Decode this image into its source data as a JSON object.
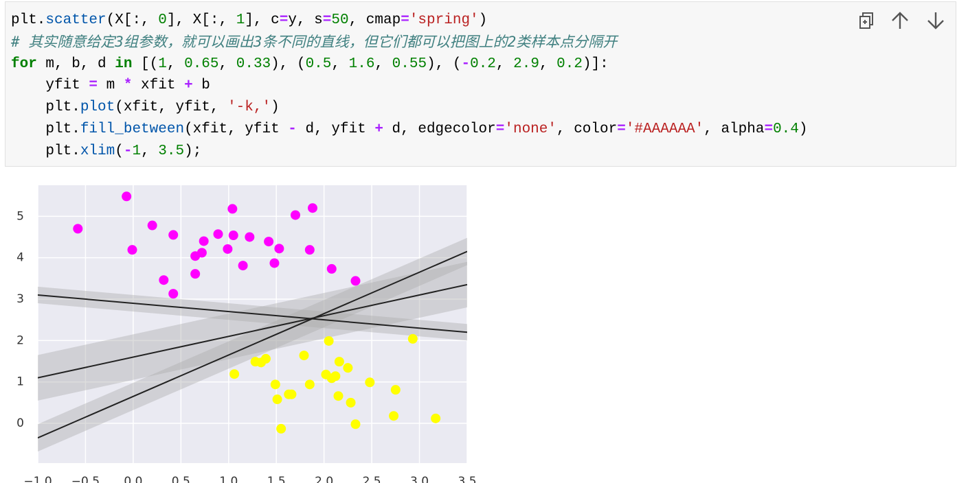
{
  "code": {
    "lines": [
      "plt.scatter(X[:, 0], X[:, 1], c=y, s=50, cmap='spring')",
      "# 其实随意给定3组参数，就可以画出3条不同的直线，但它们都可以把图上的2类样本点分隔开",
      "for m, b, d in [(1, 0.65, 0.33), (0.5, 1.6, 0.55), (-0.2, 2.9, 0.2)]:",
      "    yfit = m * xfit + b",
      "    plt.plot(xfit, yfit, '-k,')",
      "    plt.fill_between(xfit, yfit - d, yfit + d, edgecolor='none', color='#AAAAAA', alpha=0.4)",
      "    plt.xlim(-1, 3.5);"
    ]
  },
  "chart_data": {
    "type": "scatter",
    "xlim": [
      -1,
      3.5
    ],
    "ylim": [
      -0.96,
      5.75
    ],
    "xticks": [
      {
        "value": -1,
        "label": "−1.0"
      },
      {
        "value": -0.5,
        "label": "−0.5"
      },
      {
        "value": 0,
        "label": "0.0"
      },
      {
        "value": 0.5,
        "label": "0.5"
      },
      {
        "value": 1,
        "label": "1.0"
      },
      {
        "value": 1.5,
        "label": "1.5"
      },
      {
        "value": 2,
        "label": "2.0"
      },
      {
        "value": 2.5,
        "label": "2.5"
      },
      {
        "value": 3,
        "label": "3.0"
      },
      {
        "value": 3.5,
        "label": "3.5"
      }
    ],
    "yticks": [
      0,
      1,
      2,
      3,
      4,
      5
    ],
    "grid": true,
    "fits": [
      {
        "m": 1,
        "b": 0.65,
        "d": 0.33
      },
      {
        "m": 0.5,
        "b": 1.6,
        "d": 0.55
      },
      {
        "m": -0.2,
        "b": 2.9,
        "d": 0.2
      }
    ],
    "fit_color": "#AAAAAA",
    "fit_alpha": 0.4,
    "series": [
      {
        "color": "#ff00ff",
        "x": [
          -0.58,
          -0.07,
          -0.01,
          0.2,
          0.32,
          0.42,
          0.42,
          0.65,
          0.65,
          0.72,
          0.74,
          0.89,
          0.99,
          1.04,
          1.05,
          1.15,
          1.22,
          1.42,
          1.48,
          1.53,
          1.7,
          1.85,
          1.88,
          2.08,
          2.33
        ],
        "y": [
          4.7,
          5.48,
          4.19,
          4.78,
          3.46,
          4.55,
          3.13,
          4.04,
          3.61,
          4.12,
          4.4,
          4.57,
          4.21,
          5.18,
          4.54,
          3.81,
          4.5,
          4.39,
          3.87,
          4.22,
          5.03,
          4.19,
          5.2,
          3.73,
          3.44
        ]
      },
      {
        "color": "#ffff00",
        "x": [
          1.06,
          1.28,
          1.34,
          1.39,
          1.49,
          1.51,
          1.55,
          1.63,
          1.66,
          1.79,
          1.85,
          2.05,
          2.02,
          2.08,
          2.12,
          2.16,
          2.15,
          2.25,
          2.28,
          2.33,
          2.48,
          2.73,
          2.75,
          2.93,
          3.17
        ],
        "y": [
          1.19,
          1.49,
          1.47,
          1.56,
          0.94,
          0.58,
          -0.13,
          0.7,
          0.7,
          1.64,
          0.94,
          1.99,
          1.18,
          1.09,
          1.14,
          1.49,
          0.66,
          1.34,
          0.5,
          -0.02,
          0.99,
          0.18,
          0.81,
          2.04,
          0.12
        ]
      }
    ]
  }
}
